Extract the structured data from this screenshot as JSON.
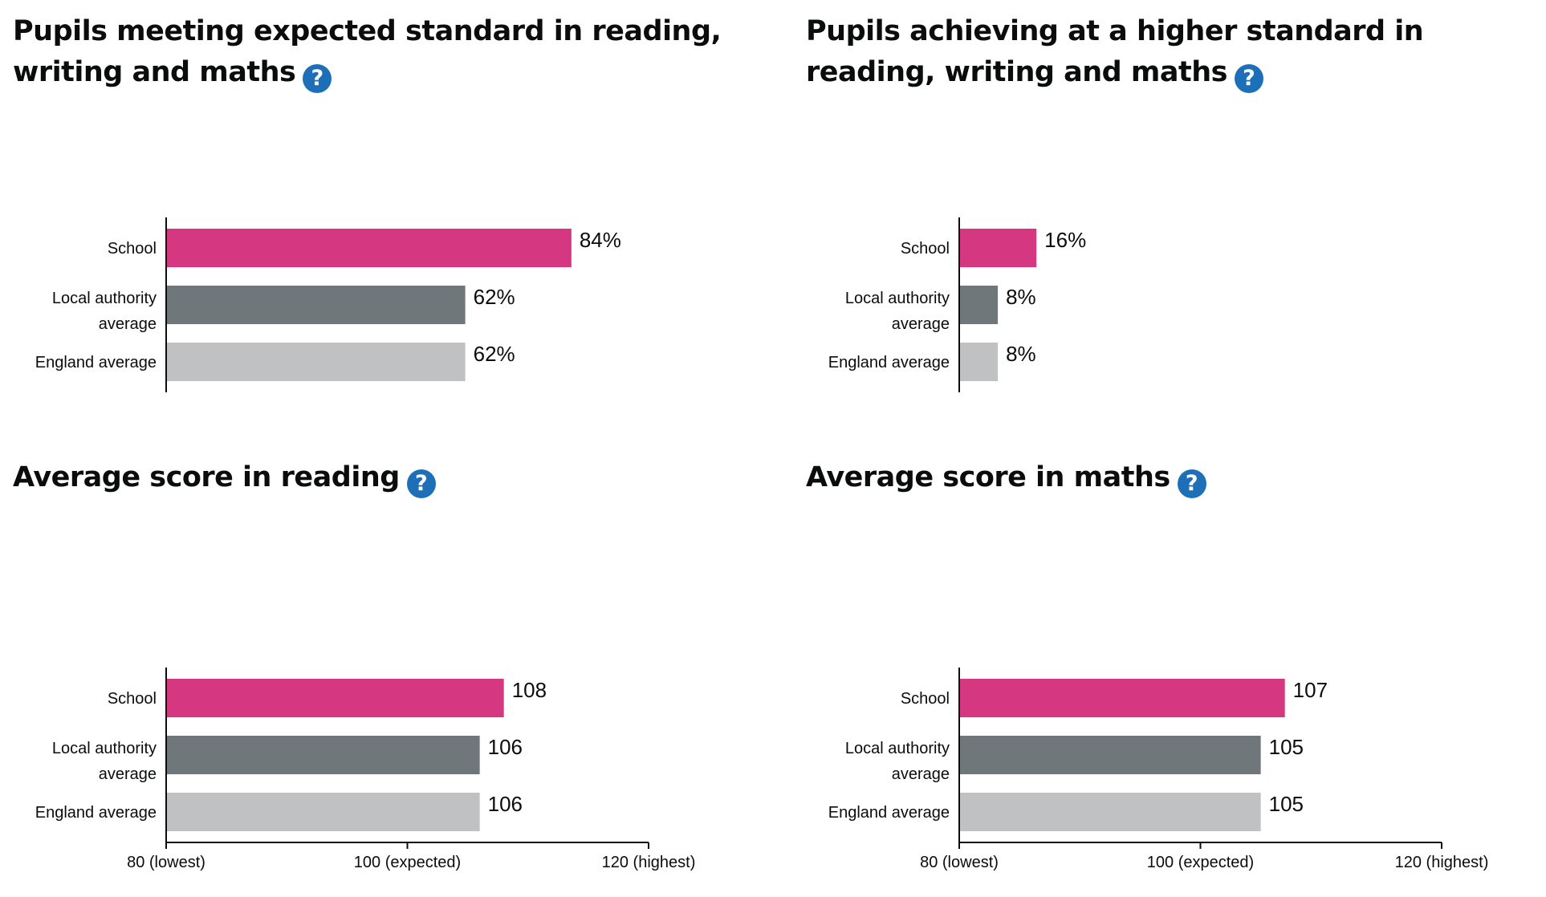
{
  "colors": {
    "school": "#d53880",
    "local_authority": "#6f777b",
    "england": "#bfc1c3",
    "help_icon": "#1d70b8"
  },
  "help_icon": {
    "icon": "question-circle-icon",
    "glyph": "?"
  },
  "chart_data": [
    {
      "type": "bar",
      "orientation": "horizontal",
      "title": "Pupils meeting expected standard in reading, writing and maths",
      "categories": [
        "School",
        "Local authority average",
        "England average"
      ],
      "values": [
        84,
        62,
        62
      ],
      "value_labels": [
        "84%",
        "62%",
        "62%"
      ],
      "unit": "%",
      "xlim": [
        0,
        100
      ],
      "x_ticks": [],
      "grid": false
    },
    {
      "type": "bar",
      "orientation": "horizontal",
      "title": "Pupils achieving at a higher standard in reading, writing and maths",
      "categories": [
        "School",
        "Local authority average",
        "England average"
      ],
      "values": [
        16,
        8,
        8
      ],
      "value_labels": [
        "16%",
        "8%",
        "8%"
      ],
      "unit": "%",
      "xlim": [
        0,
        100
      ],
      "x_ticks": [],
      "grid": false
    },
    {
      "type": "bar",
      "orientation": "horizontal",
      "title": "Average score in reading",
      "categories": [
        "School",
        "Local authority average",
        "England average"
      ],
      "values": [
        108,
        106,
        106
      ],
      "value_labels": [
        "108",
        "106",
        "106"
      ],
      "xlim": [
        80,
        120
      ],
      "x_ticks": [
        {
          "value": 80,
          "label": "80 (lowest)"
        },
        {
          "value": 100,
          "label": "100 (expected)"
        },
        {
          "value": 120,
          "label": "120 (highest)"
        }
      ],
      "grid": false
    },
    {
      "type": "bar",
      "orientation": "horizontal",
      "title": "Average score in maths",
      "categories": [
        "School",
        "Local authority average",
        "England average"
      ],
      "values": [
        107,
        105,
        105
      ],
      "value_labels": [
        "107",
        "105",
        "105"
      ],
      "xlim": [
        80,
        120
      ],
      "x_ticks": [
        {
          "value": 80,
          "label": "80 (lowest)"
        },
        {
          "value": 100,
          "label": "100 (expected)"
        },
        {
          "value": 120,
          "label": "120 (highest)"
        }
      ],
      "grid": false
    }
  ]
}
